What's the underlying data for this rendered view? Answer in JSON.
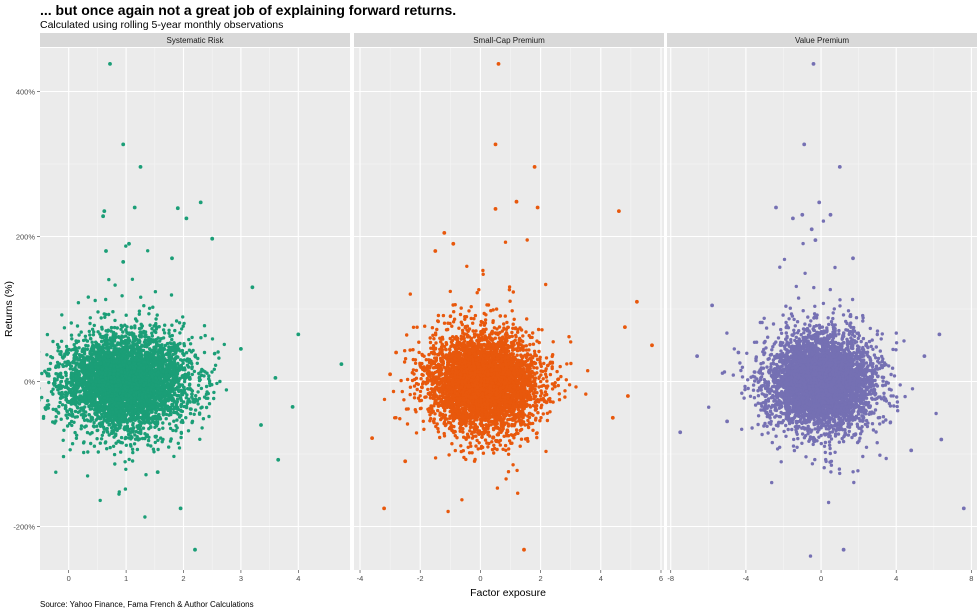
{
  "title": "... but once again not a great job of explaining forward returns.",
  "subtitle": "Calculated using rolling 5-year monthly observations",
  "caption": "Source: Yahoo Finance, Fama French & Author Calculations",
  "chart_data": {
    "type": "scatter",
    "xlabel": "Factor exposure",
    "ylabel": "Returns (%)",
    "ylim": [
      -260,
      460
    ],
    "y_ticks": [
      -200,
      0,
      200,
      400
    ],
    "y_tick_labels": [
      "-200%",
      "0%",
      "200%",
      "400%"
    ],
    "panel_background": "#ebebeb",
    "strip_background": "#d9d9d9",
    "grid": true,
    "legend": "none",
    "facets": [
      {
        "name": "Systematic Risk",
        "color": "#1b9e77",
        "xlim": [
          -0.5,
          4.9
        ],
        "x_ticks": [
          0,
          1,
          2,
          3,
          4
        ],
        "cloud": {
          "n": 4500,
          "x_center": 1.0,
          "x_sd": 0.55,
          "y_sd": 32
        },
        "points": [
          [
            0.72,
            438
          ],
          [
            0.95,
            327
          ],
          [
            1.25,
            296
          ],
          [
            0.62,
            235
          ],
          [
            0.6,
            228
          ],
          [
            1.15,
            240
          ],
          [
            1.9,
            239
          ],
          [
            2.3,
            247
          ],
          [
            2.05,
            225
          ],
          [
            2.5,
            197
          ],
          [
            1.05,
            190
          ],
          [
            0.65,
            180
          ],
          [
            1.8,
            170
          ],
          [
            0.95,
            165
          ],
          [
            3.2,
            130
          ],
          [
            4.0,
            65
          ],
          [
            4.75,
            24
          ],
          [
            3.65,
            -108
          ],
          [
            1.95,
            -175
          ],
          [
            2.2,
            -232
          ],
          [
            -0.15,
            -5
          ],
          [
            3.9,
            -35
          ],
          [
            3.35,
            -60
          ],
          [
            1.55,
            -125
          ],
          [
            3.0,
            45
          ],
          [
            3.6,
            5
          ]
        ]
      },
      {
        "name": "Small-Cap Premium",
        "color": "#e8580c",
        "xlim": [
          -4.2,
          6.1
        ],
        "x_ticks": [
          -4,
          -2,
          0,
          2,
          4,
          6
        ],
        "cloud": {
          "n": 4500,
          "x_center": 0.1,
          "x_sd": 0.9,
          "y_sd": 32
        },
        "points": [
          [
            0.6,
            438
          ],
          [
            0.5,
            327
          ],
          [
            1.8,
            296
          ],
          [
            1.2,
            248
          ],
          [
            1.9,
            240
          ],
          [
            4.6,
            235
          ],
          [
            0.5,
            238
          ],
          [
            -1.2,
            205
          ],
          [
            -0.9,
            190
          ],
          [
            -1.5,
            180
          ],
          [
            5.2,
            110
          ],
          [
            4.8,
            75
          ],
          [
            5.7,
            50
          ],
          [
            -3.2,
            -175
          ],
          [
            -3.6,
            -78
          ],
          [
            -2.5,
            -110
          ],
          [
            1.45,
            -232
          ],
          [
            4.4,
            -50
          ],
          [
            4.9,
            -20
          ],
          [
            -2.8,
            40
          ],
          [
            -3.0,
            10
          ]
        ]
      },
      {
        "name": "Value Premium",
        "color": "#7570b3",
        "xlim": [
          -8.2,
          8.3
        ],
        "x_ticks": [
          -8,
          -4,
          0,
          4,
          8
        ],
        "cloud": {
          "n": 4500,
          "x_center": 0.0,
          "x_sd": 1.45,
          "y_sd": 32
        },
        "points": [
          [
            -0.4,
            438
          ],
          [
            -0.9,
            327
          ],
          [
            1.0,
            296
          ],
          [
            -0.1,
            247
          ],
          [
            -2.4,
            240
          ],
          [
            -1.0,
            230
          ],
          [
            -1.5,
            225
          ],
          [
            0.5,
            230
          ],
          [
            -0.5,
            210
          ],
          [
            1.7,
            170
          ],
          [
            -0.3,
            195
          ],
          [
            -5.8,
            105
          ],
          [
            -6.6,
            35
          ],
          [
            -7.5,
            -70
          ],
          [
            7.6,
            -175
          ],
          [
            1.2,
            -232
          ],
          [
            6.3,
            65
          ],
          [
            6.4,
            -80
          ],
          [
            5.5,
            35
          ],
          [
            -4.4,
            40
          ],
          [
            -5.0,
            -55
          ],
          [
            4.8,
            -95
          ]
        ]
      }
    ]
  }
}
